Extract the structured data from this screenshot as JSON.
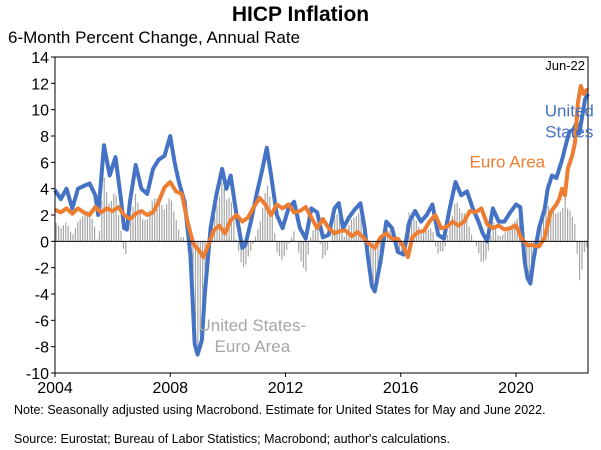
{
  "chart_data": {
    "type": "line",
    "title": "HICP Inflation",
    "subtitle": "6-Month Percent Change, Annual Rate",
    "ylim": [
      -10,
      14
    ],
    "xlim": [
      2004,
      2022.5
    ],
    "y_ticks": [
      -10,
      -8,
      -6,
      -4,
      -2,
      0,
      2,
      4,
      6,
      8,
      10,
      12,
      14
    ],
    "x_ticks": [
      2004,
      2008,
      2012,
      2016,
      2020
    ],
    "end_label": "Jun-22",
    "series": [
      {
        "name": "United States",
        "label_lines": [
          "United",
          "States"
        ],
        "color": "#4472C4",
        "points": [
          [
            2004.0,
            3.9
          ],
          [
            2004.2,
            3.2
          ],
          [
            2004.4,
            4.0
          ],
          [
            2004.6,
            2.5
          ],
          [
            2004.8,
            4.0
          ],
          [
            2005.0,
            4.2
          ],
          [
            2005.2,
            4.4
          ],
          [
            2005.4,
            3.5
          ],
          [
            2005.5,
            2.0
          ],
          [
            2005.7,
            7.3
          ],
          [
            2005.9,
            5.0
          ],
          [
            2006.1,
            6.4
          ],
          [
            2006.3,
            3.0
          ],
          [
            2006.4,
            1.0
          ],
          [
            2006.5,
            0.9
          ],
          [
            2006.6,
            3.0
          ],
          [
            2006.8,
            5.8
          ],
          [
            2007.0,
            4.0
          ],
          [
            2007.2,
            3.6
          ],
          [
            2007.4,
            5.5
          ],
          [
            2007.6,
            6.2
          ],
          [
            2007.8,
            6.5
          ],
          [
            2008.0,
            8.0
          ],
          [
            2008.15,
            6.0
          ],
          [
            2008.3,
            4.5
          ],
          [
            2008.5,
            3.0
          ],
          [
            2008.7,
            -1.0
          ],
          [
            2008.85,
            -7.8
          ],
          [
            2008.95,
            -8.6
          ],
          [
            2009.1,
            -7.5
          ],
          [
            2009.2,
            -4.0
          ],
          [
            2009.4,
            1.0
          ],
          [
            2009.6,
            3.5
          ],
          [
            2009.8,
            5.5
          ],
          [
            2009.95,
            4.0
          ],
          [
            2010.1,
            5.0
          ],
          [
            2010.3,
            2.0
          ],
          [
            2010.5,
            -0.5
          ],
          [
            2010.6,
            -0.3
          ],
          [
            2010.8,
            1.5
          ],
          [
            2011.0,
            3.6
          ],
          [
            2011.2,
            5.5
          ],
          [
            2011.35,
            7.1
          ],
          [
            2011.5,
            5.0
          ],
          [
            2011.7,
            2.0
          ],
          [
            2011.9,
            1.0
          ],
          [
            2012.1,
            2.5
          ],
          [
            2012.3,
            3.0
          ],
          [
            2012.5,
            1.0
          ],
          [
            2012.7,
            0.2
          ],
          [
            2012.9,
            2.5
          ],
          [
            2013.1,
            2.2
          ],
          [
            2013.3,
            0.3
          ],
          [
            2013.5,
            0.5
          ],
          [
            2013.7,
            2.5
          ],
          [
            2013.85,
            2.9
          ],
          [
            2014.0,
            1.0
          ],
          [
            2014.2,
            1.8
          ],
          [
            2014.4,
            2.4
          ],
          [
            2014.6,
            2.9
          ],
          [
            2014.75,
            1.0
          ],
          [
            2014.85,
            -1.0
          ],
          [
            2015.0,
            -3.4
          ],
          [
            2015.1,
            -3.8
          ],
          [
            2015.3,
            -1.5
          ],
          [
            2015.5,
            1.5
          ],
          [
            2015.7,
            1.0
          ],
          [
            2015.9,
            -0.8
          ],
          [
            2016.1,
            -1.0
          ],
          [
            2016.3,
            1.5
          ],
          [
            2016.5,
            2.3
          ],
          [
            2016.7,
            1.5
          ],
          [
            2016.9,
            2.0
          ],
          [
            2017.1,
            2.8
          ],
          [
            2017.3,
            0.5
          ],
          [
            2017.5,
            0.2
          ],
          [
            2017.7,
            2.5
          ],
          [
            2017.9,
            4.5
          ],
          [
            2018.1,
            3.5
          ],
          [
            2018.3,
            3.8
          ],
          [
            2018.5,
            2.5
          ],
          [
            2018.7,
            1.5
          ],
          [
            2018.85,
            0.6
          ],
          [
            2019.0,
            0.0
          ],
          [
            2019.2,
            2.5
          ],
          [
            2019.4,
            1.5
          ],
          [
            2019.6,
            1.5
          ],
          [
            2019.8,
            2.2
          ],
          [
            2020.0,
            2.8
          ],
          [
            2020.15,
            2.6
          ],
          [
            2020.3,
            -1.5
          ],
          [
            2020.4,
            -2.8
          ],
          [
            2020.5,
            -3.2
          ],
          [
            2020.6,
            -1.5
          ],
          [
            2020.8,
            1.0
          ],
          [
            2021.0,
            2.5
          ],
          [
            2021.1,
            4.0
          ],
          [
            2021.25,
            5.0
          ],
          [
            2021.4,
            4.8
          ],
          [
            2021.5,
            5.5
          ],
          [
            2021.6,
            6.2
          ],
          [
            2021.75,
            7.5
          ],
          [
            2021.85,
            8.3
          ],
          [
            2022.0,
            8.5
          ],
          [
            2022.1,
            9.0
          ],
          [
            2022.2,
            8.2
          ],
          [
            2022.3,
            9.5
          ],
          [
            2022.4,
            10.8
          ],
          [
            2022.5,
            11.2
          ]
        ]
      },
      {
        "name": "Euro Area",
        "label_lines": [
          "Euro Area"
        ],
        "color": "#ED7D31",
        "points": [
          [
            2004.0,
            2.4
          ],
          [
            2004.2,
            2.2
          ],
          [
            2004.4,
            2.5
          ],
          [
            2004.6,
            2.1
          ],
          [
            2004.8,
            2.5
          ],
          [
            2005.0,
            2.2
          ],
          [
            2005.2,
            2.0
          ],
          [
            2005.4,
            2.6
          ],
          [
            2005.6,
            2.2
          ],
          [
            2005.8,
            2.5
          ],
          [
            2006.0,
            2.3
          ],
          [
            2006.2,
            2.6
          ],
          [
            2006.4,
            2.0
          ],
          [
            2006.6,
            1.7
          ],
          [
            2006.8,
            2.1
          ],
          [
            2007.0,
            2.3
          ],
          [
            2007.2,
            2.0
          ],
          [
            2007.4,
            2.2
          ],
          [
            2007.6,
            3.0
          ],
          [
            2007.8,
            4.1
          ],
          [
            2008.0,
            4.5
          ],
          [
            2008.2,
            3.8
          ],
          [
            2008.4,
            3.6
          ],
          [
            2008.6,
            1.5
          ],
          [
            2008.8,
            -0.2
          ],
          [
            2009.0,
            -0.7
          ],
          [
            2009.15,
            -1.2
          ],
          [
            2009.3,
            -0.4
          ],
          [
            2009.5,
            0.8
          ],
          [
            2009.7,
            1.2
          ],
          [
            2009.9,
            0.6
          ],
          [
            2010.1,
            1.6
          ],
          [
            2010.3,
            2.0
          ],
          [
            2010.5,
            1.5
          ],
          [
            2010.7,
            1.8
          ],
          [
            2010.9,
            2.6
          ],
          [
            2011.1,
            3.3
          ],
          [
            2011.3,
            2.8
          ],
          [
            2011.5,
            2.0
          ],
          [
            2011.7,
            2.8
          ],
          [
            2011.9,
            2.5
          ],
          [
            2012.1,
            2.8
          ],
          [
            2012.3,
            2.2
          ],
          [
            2012.5,
            2.3
          ],
          [
            2012.7,
            2.6
          ],
          [
            2012.9,
            1.8
          ],
          [
            2013.1,
            1.0
          ],
          [
            2013.3,
            1.7
          ],
          [
            2013.5,
            1.0
          ],
          [
            2013.7,
            0.6
          ],
          [
            2013.9,
            0.8
          ],
          [
            2014.1,
            0.8
          ],
          [
            2014.3,
            0.4
          ],
          [
            2014.5,
            0.7
          ],
          [
            2014.7,
            0.3
          ],
          [
            2014.9,
            -0.2
          ],
          [
            2015.1,
            -0.5
          ],
          [
            2015.3,
            0.3
          ],
          [
            2015.5,
            0.6
          ],
          [
            2015.7,
            0.2
          ],
          [
            2015.9,
            0.2
          ],
          [
            2016.1,
            -0.4
          ],
          [
            2016.25,
            -1.2
          ],
          [
            2016.4,
            0.3
          ],
          [
            2016.6,
            0.7
          ],
          [
            2016.8,
            0.8
          ],
          [
            2017.0,
            1.5
          ],
          [
            2017.2,
            2.0
          ],
          [
            2017.4,
            1.0
          ],
          [
            2017.6,
            1.1
          ],
          [
            2017.8,
            1.5
          ],
          [
            2018.0,
            1.2
          ],
          [
            2018.2,
            1.5
          ],
          [
            2018.4,
            2.3
          ],
          [
            2018.6,
            2.2
          ],
          [
            2018.8,
            2.5
          ],
          [
            2019.0,
            1.3
          ],
          [
            2019.2,
            1.0
          ],
          [
            2019.4,
            1.2
          ],
          [
            2019.6,
            0.9
          ],
          [
            2019.8,
            1.0
          ],
          [
            2020.0,
            1.2
          ],
          [
            2020.2,
            0.2
          ],
          [
            2020.4,
            -0.3
          ],
          [
            2020.6,
            -0.3
          ],
          [
            2020.8,
            -0.4
          ],
          [
            2021.0,
            0.3
          ],
          [
            2021.2,
            2.2
          ],
          [
            2021.4,
            2.8
          ],
          [
            2021.5,
            3.2
          ],
          [
            2021.6,
            4.0
          ],
          [
            2021.7,
            3.5
          ],
          [
            2021.8,
            5.5
          ],
          [
            2021.95,
            6.5
          ],
          [
            2022.05,
            7.5
          ],
          [
            2022.15,
            10.5
          ],
          [
            2022.25,
            11.8
          ],
          [
            2022.35,
            11.2
          ],
          [
            2022.45,
            11.5
          ],
          [
            2022.5,
            11.5
          ]
        ]
      }
    ],
    "difference": {
      "name": "United States-Euro Area",
      "label_lines": [
        "United States-",
        "Euro Area"
      ],
      "color": "#A6A6A6"
    }
  },
  "notes": {
    "line1": "Note:  Seasonally adjusted using Macrobond.  Estimate for United States for May and June 2022.",
    "line2": "Source: Eurostat; Bureau of Labor Statistics; Macrobond; author's calculations."
  }
}
